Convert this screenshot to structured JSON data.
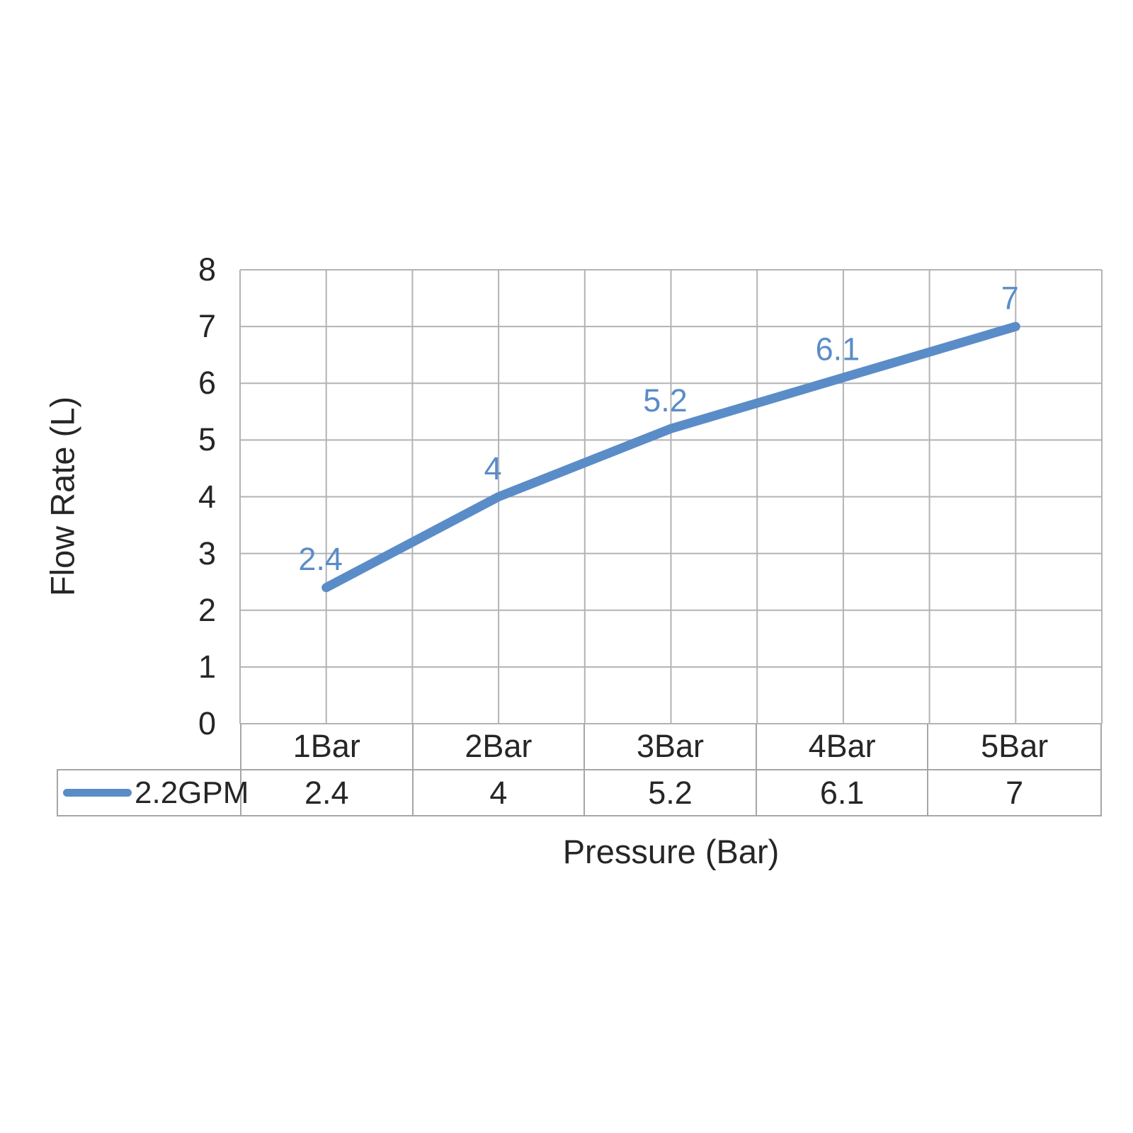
{
  "chart_data": {
    "type": "line",
    "categories": [
      "1Bar",
      "2Bar",
      "3Bar",
      "4Bar",
      "5Bar"
    ],
    "series": [
      {
        "name": "2.2GPM",
        "values": [
          2.4,
          4,
          5.2,
          6.1,
          7
        ],
        "value_labels": [
          "2.4",
          "4",
          "5.2",
          "6.1",
          "7"
        ],
        "color": "#5A8CC8"
      }
    ],
    "xlabel": "Pressure (Bar)",
    "ylabel": "Flow Rate (L)",
    "ylim": [
      0,
      8
    ],
    "y_ticks": [
      0,
      1,
      2,
      3,
      4,
      5,
      6,
      7,
      8
    ],
    "grid": "horizontal-and-vertical-half-category",
    "legend_position": "data-table-left",
    "data_table": true
  },
  "colors": {
    "series": "#5A8CC8",
    "gridline": "#B3B3B3",
    "table_border": "#A6A6A6",
    "text": "#262626"
  }
}
